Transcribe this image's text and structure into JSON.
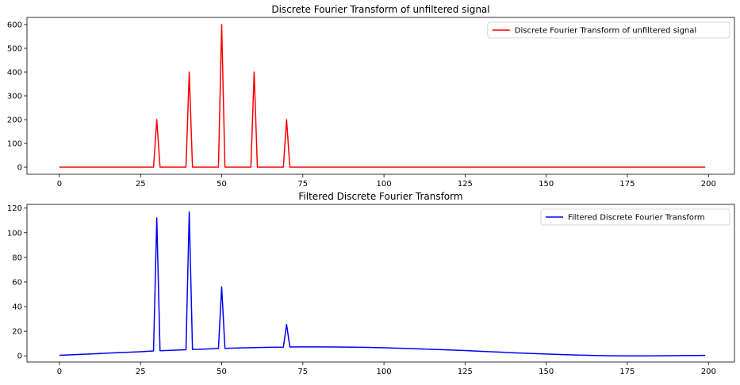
{
  "chart_data": [
    {
      "type": "line",
      "title": "Discrete Fourier Transform of unfiltered signal",
      "xlabel": "",
      "ylabel": "",
      "xlim": [
        -10,
        208
      ],
      "ylim": [
        -30,
        630
      ],
      "xticks": [
        0,
        25,
        50,
        75,
        100,
        125,
        150,
        175,
        200
      ],
      "yticks": [
        0,
        100,
        200,
        300,
        400,
        500,
        600
      ],
      "grid": false,
      "legend_position": "top-right",
      "series": [
        {
          "name": "Discrete Fourier Transform of unfiltered signal",
          "color": "#ff0000",
          "x": [
            0,
            29,
            30,
            31,
            39,
            40,
            41,
            49,
            50,
            51,
            59,
            60,
            61,
            69,
            70,
            71,
            199
          ],
          "y": [
            0,
            0,
            200,
            0,
            0,
            400,
            0,
            0,
            600,
            0,
            0,
            400,
            0,
            0,
            200,
            0,
            0
          ]
        }
      ]
    },
    {
      "type": "line",
      "title": "Filtered Discrete Fourier Transform",
      "xlabel": "",
      "ylabel": "",
      "xlim": [
        -10,
        208
      ],
      "ylim": [
        -5,
        123
      ],
      "xticks": [
        0,
        25,
        50,
        75,
        100,
        125,
        150,
        175,
        200
      ],
      "yticks": [
        0,
        20,
        40,
        60,
        80,
        100,
        120
      ],
      "grid": false,
      "legend_position": "top-right",
      "series": [
        {
          "name": "Filtered Discrete Fourier Transform",
          "color": "#0000ff",
          "x": [
            0,
            5,
            10,
            15,
            20,
            25,
            29,
            30,
            31,
            35,
            39,
            40,
            41,
            45,
            49,
            50,
            51,
            55,
            60,
            65,
            69,
            70,
            71,
            75,
            80,
            85,
            90,
            95,
            100,
            105,
            110,
            115,
            120,
            125,
            130,
            135,
            140,
            145,
            150,
            155,
            160,
            165,
            170,
            175,
            180,
            185,
            190,
            195,
            199
          ],
          "y": [
            0.5,
            1,
            1.6,
            2.2,
            2.8,
            3.4,
            4,
            112,
            4.2,
            4.6,
            5,
            117,
            5.2,
            5.5,
            6,
            56,
            6.1,
            6.4,
            6.7,
            7,
            7.1,
            25.5,
            7.2,
            7.3,
            7.3,
            7.2,
            7.1,
            6.9,
            6.6,
            6.2,
            5.8,
            5.3,
            4.8,
            4.3,
            3.7,
            3.1,
            2.5,
            2,
            1.5,
            1,
            0.6,
            0.3,
            0.1,
            0,
            0,
            0.1,
            0.2,
            0.3,
            0.4
          ]
        }
      ]
    }
  ]
}
